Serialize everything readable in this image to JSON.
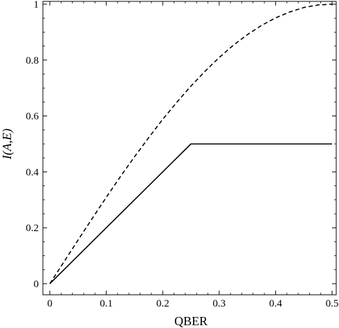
{
  "chart_data": {
    "type": "line",
    "title": "",
    "xlabel": "QBER",
    "ylabel": "I(A,E)",
    "xlim": [
      0,
      0.5
    ],
    "ylim": [
      0,
      1
    ],
    "x_ticks": [
      "0",
      "0.1",
      "0.2",
      "0.3",
      "0.4",
      "0.5"
    ],
    "y_ticks": [
      "0",
      "0.2",
      "0.4",
      "0.6",
      "0.8",
      "1"
    ],
    "grid": false,
    "series": [
      {
        "style": "dashed",
        "color": "#000000",
        "x": [
          0,
          0.025,
          0.05,
          0.075,
          0.1,
          0.125,
          0.15,
          0.175,
          0.2,
          0.225,
          0.25,
          0.275,
          0.3,
          0.325,
          0.35,
          0.375,
          0.4,
          0.425,
          0.45,
          0.475,
          0.5
        ],
        "y": [
          0,
          0.078,
          0.156,
          0.233,
          0.309,
          0.383,
          0.454,
          0.522,
          0.588,
          0.649,
          0.707,
          0.76,
          0.809,
          0.853,
          0.891,
          0.924,
          0.951,
          0.972,
          0.988,
          0.997,
          1.0
        ]
      },
      {
        "style": "solid",
        "color": "#000000",
        "x": [
          0,
          0.25,
          0.5
        ],
        "y": [
          0,
          0.5,
          0.5
        ]
      }
    ]
  }
}
